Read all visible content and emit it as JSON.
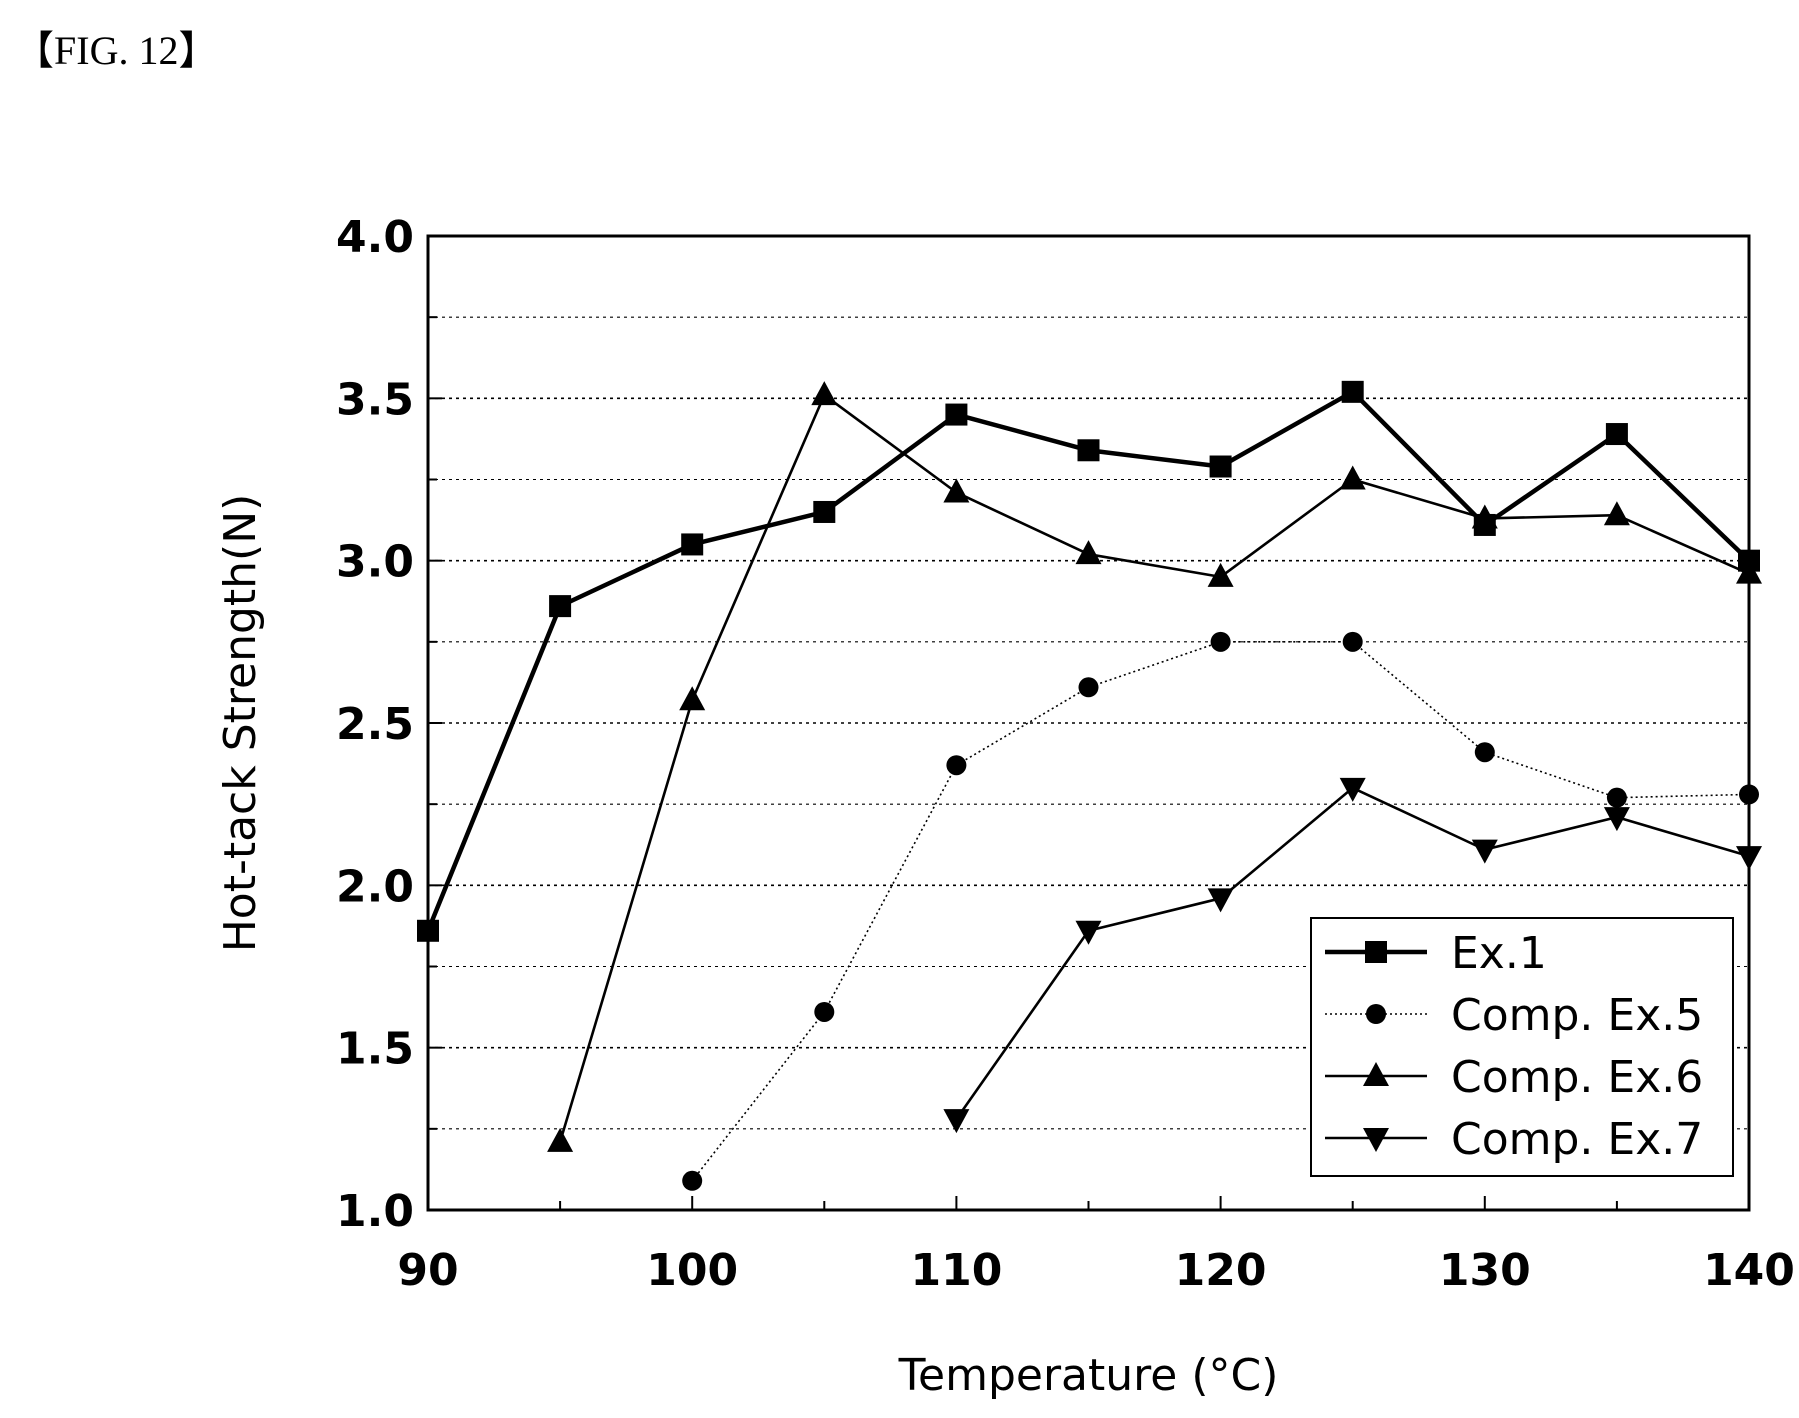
{
  "figure_label": "【FIG. 12】",
  "chart_data": {
    "type": "line",
    "xlabel": "Temperature (°C)",
    "ylabel": "Hot-tack Strength(N)",
    "xlim": [
      90,
      140
    ],
    "ylim": [
      1.0,
      4.0
    ],
    "x_ticks": [
      "90",
      "100",
      "110",
      "120",
      "130",
      "140"
    ],
    "y_ticks": [
      "1.0",
      "1.5",
      "2.0",
      "2.5",
      "3.0",
      "3.5",
      "4.0"
    ],
    "grid": true,
    "legend_position": "bottom-right",
    "series": [
      {
        "name": "Ex.1",
        "marker": "square",
        "line": "solid-bold",
        "x": [
          90,
          95,
          100,
          105,
          110,
          115,
          120,
          125,
          130,
          135,
          140
        ],
        "y": [
          1.86,
          2.86,
          3.05,
          3.15,
          3.45,
          3.34,
          3.29,
          3.52,
          3.11,
          3.39,
          3.0
        ]
      },
      {
        "name": "Comp. Ex.5",
        "marker": "circle",
        "line": "dotted",
        "x": [
          100,
          105,
          110,
          115,
          120,
          125,
          130,
          135,
          140
        ],
        "y": [
          1.09,
          1.61,
          2.37,
          2.61,
          2.75,
          2.75,
          2.41,
          2.27,
          2.28
        ]
      },
      {
        "name": "Comp. Ex.6",
        "marker": "triangle-up",
        "line": "solid",
        "x": [
          95,
          100,
          105,
          110,
          115,
          120,
          125,
          130,
          135,
          140
        ],
        "y": [
          1.21,
          2.57,
          3.51,
          3.21,
          3.02,
          2.95,
          3.25,
          3.13,
          3.14,
          2.96
        ]
      },
      {
        "name": "Comp. Ex.7",
        "marker": "triangle-down",
        "line": "solid",
        "x": [
          110,
          115,
          120,
          125,
          130,
          135,
          140
        ],
        "y": [
          1.28,
          1.86,
          1.96,
          2.3,
          2.11,
          2.21,
          2.09
        ]
      }
    ]
  }
}
